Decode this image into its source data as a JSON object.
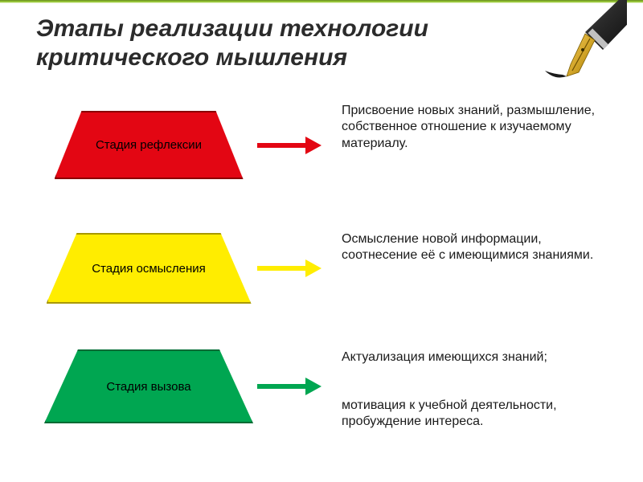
{
  "slide": {
    "title": "Этапы реализации технологии критического мышления",
    "title_fontsize": 30,
    "title_color": "#2b2b2b",
    "title_italic": true,
    "title_bold": true,
    "background_color": "#ffffff",
    "top_accent_color": "#6b8e23"
  },
  "pen": {
    "body_gradient": [
      "#4a4a4a",
      "#1a1a1a"
    ],
    "nib_gold": "#d4a72c",
    "nib_gold_light": "#f0c95a",
    "nib_gold_dark": "#a67c00",
    "ink_color": "#1a1a1a"
  },
  "stages": [
    {
      "label": "Стадия рефлексии",
      "fill": "#e30613",
      "stroke": "#8a0000",
      "arrow_color": "#e30613",
      "trap_bottom_width": 235,
      "trap_height": 85,
      "trap_inset": 34,
      "description": "Присвоение новых знаний, размышление, собственное отношение к изучаемому материалу.",
      "label_fontsize": 15
    },
    {
      "label": "Стадия осмысления",
      "fill": "#ffed00",
      "stroke": "#a89800",
      "arrow_color": "#ffed00",
      "trap_bottom_width": 255,
      "trap_height": 88,
      "trap_inset": 38,
      "description": "Осмысление новой информации, соотнесение её с имеющимися знаниями.",
      "label_fontsize": 15
    },
    {
      "label": "Стадия вызова",
      "fill": "#00a651",
      "stroke": "#006b34",
      "arrow_color": "#00a651",
      "trap_bottom_width": 270,
      "trap_height": 92,
      "trap_inset": 42,
      "description_a": "Актуализация имеющихся знаний;",
      "description_b": "мотивация к учебной деятельности, пробуждение интереса.",
      "label_fontsize": 15
    }
  ],
  "arrow": {
    "shaft_length": 60,
    "shaft_thickness": 6,
    "head_width": 22,
    "head_length": 20
  }
}
